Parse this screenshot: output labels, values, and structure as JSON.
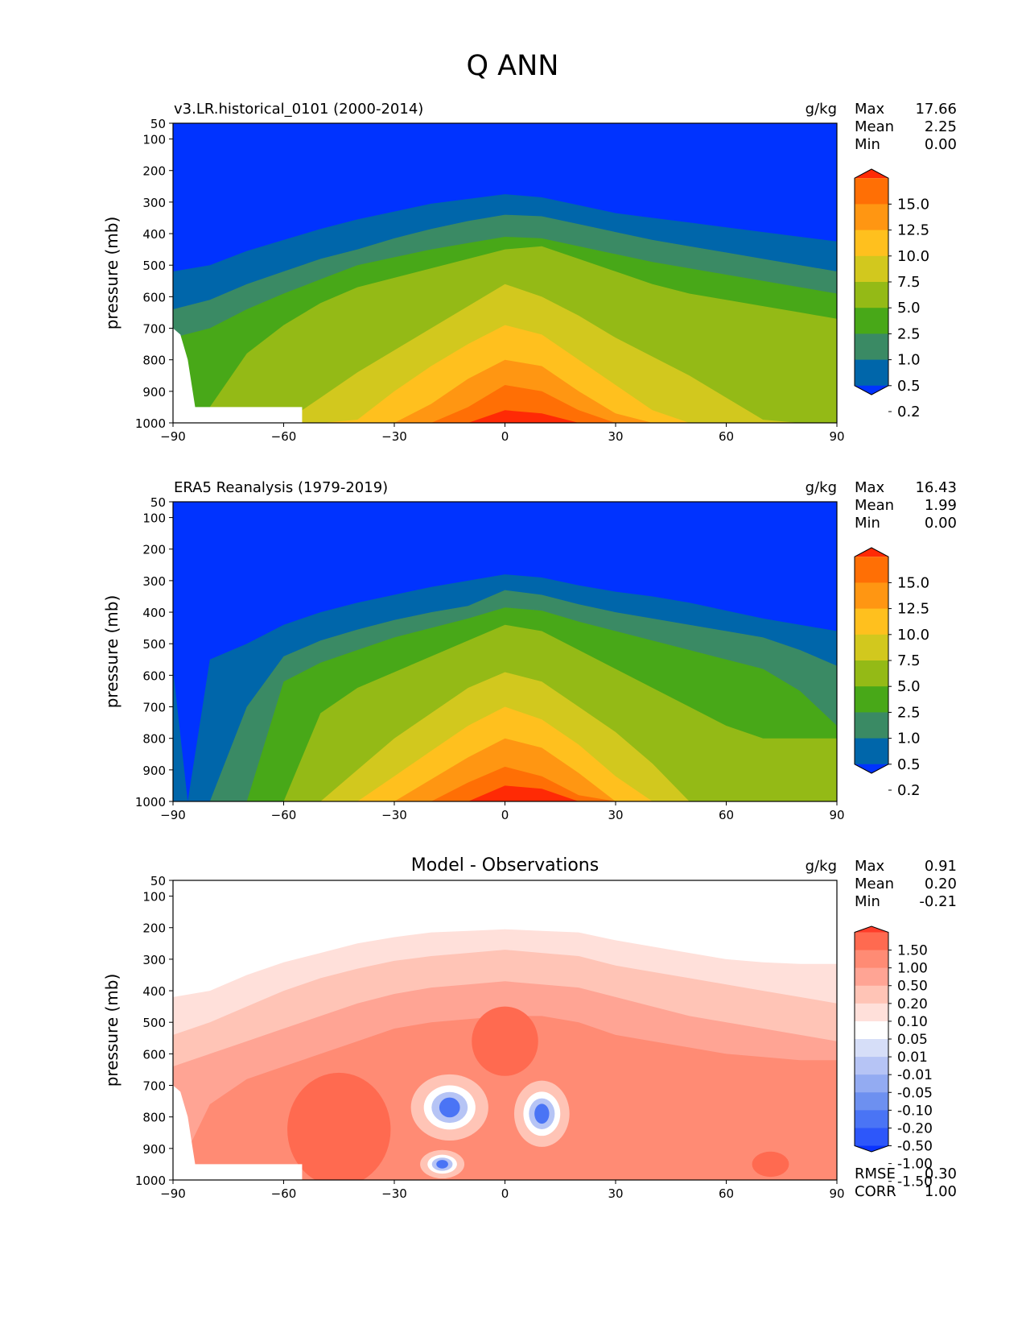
{
  "figure": {
    "title": "Q ANN"
  },
  "colors": {
    "levels": [
      "#0033ff",
      "#0066aa",
      "#3a8a64",
      "#48a818",
      "#94ba16",
      "#d2c81e",
      "#ffc01e",
      "#ff9612",
      "#ff6f05",
      "#ff2a05"
    ],
    "diff": [
      "#0a33ff",
      "#2d57fa",
      "#4a74f5",
      "#6d90f0",
      "#93abf2",
      "#b6c4f5",
      "#d6def8",
      "#ffffff",
      "#ffe0da",
      "#ffc4b6",
      "#ffa494",
      "#ff8b74",
      "#ff6a50",
      "#ff3d2a"
    ]
  },
  "chart_data": [
    {
      "type": "heatmap",
      "title": "v3.LR.historical_0101 (2000-2014)",
      "units": "g/kg",
      "ylabel": "pressure (mb)",
      "xlim": [
        -90,
        90
      ],
      "ylim": [
        1000,
        50
      ],
      "xticks": [
        "−90",
        "−60",
        "−30",
        "0",
        "30",
        "60",
        "90"
      ],
      "yticks": [
        "50",
        "100",
        "200",
        "300",
        "400",
        "500",
        "600",
        "700",
        "800",
        "900",
        "1000"
      ],
      "stats": [
        {
          "label": "Max",
          "value": "17.66"
        },
        {
          "label": "Mean",
          "value": "2.25"
        },
        {
          "label": "Min",
          "value": "0.00"
        }
      ],
      "colorbar_labels": [
        "15.0",
        "12.5",
        "10.0",
        "7.5",
        "5.0",
        "2.5",
        "1.0",
        "0.5",
        "0.2"
      ],
      "contour_levels": [
        0.2,
        0.5,
        1.0,
        2.5,
        5.0,
        7.5,
        10.0,
        12.5,
        15.0
      ],
      "boundaries": {
        "x": [
          -90,
          -80,
          -70,
          -60,
          -50,
          -40,
          -30,
          -20,
          -10,
          0,
          10,
          20,
          30,
          40,
          50,
          60,
          70,
          80,
          90
        ],
        "levels": [
          [
            520,
            500,
            455,
            420,
            385,
            355,
            330,
            305,
            290,
            275,
            285,
            310,
            335,
            350,
            365,
            380,
            395,
            410,
            425
          ],
          [
            640,
            610,
            560,
            520,
            480,
            450,
            415,
            385,
            360,
            340,
            345,
            370,
            395,
            420,
            440,
            460,
            480,
            500,
            520
          ],
          [
            730,
            700,
            640,
            590,
            545,
            500,
            475,
            450,
            430,
            410,
            415,
            440,
            465,
            490,
            510,
            530,
            550,
            570,
            590
          ],
          [
            1000,
            950,
            780,
            690,
            620,
            570,
            540,
            510,
            480,
            450,
            440,
            480,
            520,
            560,
            590,
            610,
            630,
            650,
            670
          ],
          [
            1000,
            1000,
            1000,
            1000,
            920,
            840,
            770,
            700,
            630,
            560,
            600,
            660,
            730,
            790,
            850,
            920,
            990,
            1000,
            1000
          ],
          [
            1000,
            1000,
            1000,
            1000,
            1000,
            990,
            900,
            820,
            750,
            690,
            720,
            800,
            880,
            960,
            1000,
            1000,
            1000,
            1000,
            1000
          ],
          [
            1000,
            1000,
            1000,
            1000,
            1000,
            1000,
            1000,
            940,
            860,
            800,
            820,
            900,
            970,
            1000,
            1000,
            1000,
            1000,
            1000,
            1000
          ],
          [
            1000,
            1000,
            1000,
            1000,
            1000,
            1000,
            1000,
            1000,
            950,
            880,
            900,
            960,
            1000,
            1000,
            1000,
            1000,
            1000,
            1000,
            1000
          ],
          [
            1000,
            1000,
            1000,
            1000,
            1000,
            1000,
            1000,
            1000,
            1000,
            960,
            970,
            1000,
            1000,
            1000,
            1000,
            1000,
            1000,
            1000,
            1000
          ]
        ]
      },
      "missing_region": true
    },
    {
      "type": "heatmap",
      "title": "ERA5 Reanalysis (1979-2019)",
      "units": "g/kg",
      "ylabel": "pressure (mb)",
      "xlim": [
        -90,
        90
      ],
      "ylim": [
        1000,
        50
      ],
      "xticks": [
        "−90",
        "−60",
        "−30",
        "0",
        "30",
        "60",
        "90"
      ],
      "yticks": [
        "50",
        "100",
        "200",
        "300",
        "400",
        "500",
        "600",
        "700",
        "800",
        "900",
        "1000"
      ],
      "stats": [
        {
          "label": "Max",
          "value": "16.43"
        },
        {
          "label": "Mean",
          "value": "1.99"
        },
        {
          "label": "Min",
          "value": "0.00"
        }
      ],
      "colorbar_labels": [
        "15.0",
        "12.5",
        "10.0",
        "7.5",
        "5.0",
        "2.5",
        "1.0",
        "0.5",
        "0.2"
      ],
      "contour_levels": [
        0.2,
        0.5,
        1.0,
        2.5,
        5.0,
        7.5,
        10.0,
        12.5,
        15.0
      ],
      "boundaries": {
        "x": [
          -90,
          -86,
          -80,
          -70,
          -60,
          -50,
          -40,
          -30,
          -20,
          -10,
          0,
          10,
          20,
          30,
          40,
          50,
          60,
          70,
          80,
          90
        ],
        "levels": [
          [
            580,
            1000,
            550,
            500,
            440,
            400,
            370,
            345,
            320,
            300,
            280,
            290,
            315,
            335,
            350,
            370,
            395,
            420,
            440,
            460
          ],
          [
            1000,
            1000,
            1000,
            700,
            540,
            490,
            455,
            425,
            400,
            380,
            330,
            345,
            375,
            400,
            420,
            440,
            460,
            480,
            520,
            570
          ],
          [
            1000,
            1000,
            1000,
            1000,
            620,
            560,
            520,
            480,
            450,
            420,
            385,
            395,
            430,
            460,
            490,
            520,
            550,
            580,
            650,
            760
          ],
          [
            1000,
            1000,
            1000,
            1000,
            1000,
            720,
            640,
            590,
            540,
            490,
            440,
            460,
            520,
            580,
            640,
            700,
            760,
            800,
            800,
            800
          ],
          [
            1000,
            1000,
            1000,
            1000,
            1000,
            1000,
            900,
            800,
            720,
            640,
            590,
            620,
            700,
            780,
            880,
            1000,
            1000,
            1000,
            1000,
            1000
          ],
          [
            1000,
            1000,
            1000,
            1000,
            1000,
            1000,
            1000,
            920,
            840,
            760,
            700,
            740,
            820,
            920,
            1000,
            1000,
            1000,
            1000,
            1000,
            1000
          ],
          [
            1000,
            1000,
            1000,
            1000,
            1000,
            1000,
            1000,
            1000,
            930,
            860,
            800,
            830,
            910,
            1000,
            1000,
            1000,
            1000,
            1000,
            1000,
            1000
          ],
          [
            1000,
            1000,
            1000,
            1000,
            1000,
            1000,
            1000,
            1000,
            1000,
            940,
            890,
            920,
            980,
            1000,
            1000,
            1000,
            1000,
            1000,
            1000,
            1000
          ],
          [
            1000,
            1000,
            1000,
            1000,
            1000,
            1000,
            1000,
            1000,
            1000,
            1000,
            950,
            960,
            1000,
            1000,
            1000,
            1000,
            1000,
            1000,
            1000,
            1000
          ]
        ]
      },
      "missing_region": false
    },
    {
      "type": "heatmap",
      "title": "Model - Observations",
      "units": "g/kg",
      "ylabel": "pressure (mb)",
      "xlim": [
        -90,
        90
      ],
      "ylim": [
        1000,
        50
      ],
      "xticks": [
        "−90",
        "−60",
        "−30",
        "0",
        "30",
        "60",
        "90"
      ],
      "yticks": [
        "50",
        "100",
        "200",
        "300",
        "400",
        "500",
        "600",
        "700",
        "800",
        "900",
        "1000"
      ],
      "stats": [
        {
          "label": "Max",
          "value": "0.91"
        },
        {
          "label": "Mean",
          "value": "0.20"
        },
        {
          "label": "Min",
          "value": "-0.21"
        }
      ],
      "extra_stats": [
        {
          "label": "RMSE",
          "value": "0.30"
        },
        {
          "label": "CORR",
          "value": "1.00"
        }
      ],
      "colorbar_labels": [
        "1.50",
        "1.00",
        "0.50",
        "0.20",
        "0.10",
        "0.05",
        "0.01",
        "-0.01",
        "-0.05",
        "-0.10",
        "-0.20",
        "-0.50",
        "-1.00",
        "-1.50"
      ],
      "contour_levels": [
        0.01,
        0.05,
        0.1,
        0.2
      ],
      "boundaries": {
        "x": [
          -90,
          -80,
          -70,
          -60,
          -50,
          -40,
          -30,
          -20,
          -10,
          0,
          10,
          20,
          30,
          40,
          50,
          60,
          70,
          80,
          90
        ],
        "levels": [
          [
            420,
            400,
            350,
            310,
            280,
            250,
            230,
            215,
            210,
            205,
            210,
            215,
            240,
            260,
            280,
            300,
            310,
            315,
            315
          ],
          [
            540,
            500,
            450,
            400,
            360,
            330,
            305,
            290,
            280,
            270,
            280,
            290,
            320,
            340,
            360,
            380,
            400,
            420,
            440
          ],
          [
            640,
            600,
            560,
            520,
            480,
            440,
            410,
            390,
            380,
            370,
            380,
            390,
            420,
            450,
            480,
            500,
            520,
            540,
            560
          ],
          [
            1000,
            760,
            680,
            640,
            600,
            560,
            520,
            500,
            490,
            480,
            480,
            500,
            540,
            560,
            580,
            600,
            610,
            620,
            620
          ]
        ]
      },
      "features": {
        "positive_hotspots": [
          {
            "x": -45,
            "p": 840,
            "rx": 14,
            "rp": 180
          },
          {
            "x": 0,
            "p": 560,
            "rx": 9,
            "rp": 110
          },
          {
            "x": 72,
            "p": 950,
            "rx": 5,
            "rp": 40
          }
        ],
        "negative_hotspots": [
          {
            "x": -15,
            "p": 770,
            "rx": 7,
            "rp": 70
          },
          {
            "x": 10,
            "p": 790,
            "rx": 5,
            "rp": 70
          },
          {
            "x": -17,
            "p": 950,
            "rx": 4,
            "rp": 30
          }
        ]
      },
      "missing_region": true
    }
  ]
}
